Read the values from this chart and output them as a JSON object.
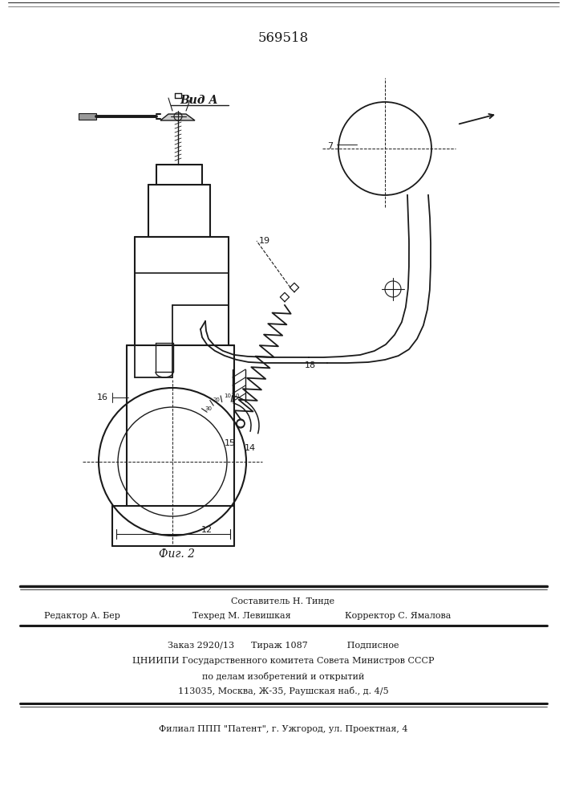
{
  "patent_number": "569518",
  "title_view": "Вид А",
  "fig_label": "Фиг. 2",
  "footer_line1_center": "Составитель Н. Тинде",
  "footer_line2_left": "Редактор А. Бер",
  "footer_line2_center": "Техред М. Левишкая",
  "footer_line2_right": "Корректор С. Ямалова",
  "footer_line3": "Заказ 2920/13      Тираж 1087              Подписное",
  "footer_line4": "ЦНИИПИ Государственного комитета Совета Министров СССР",
  "footer_line5": "по делам изобретений и открытий",
  "footer_line6": "113035, Москва, Ж-35, Раушская наб., д. 4/5",
  "footer_line7": "Филиал ППП \"Патент\", г. Ужгород, ул. Проектная, 4",
  "bg_color": "#ffffff",
  "line_color": "#1a1a1a"
}
